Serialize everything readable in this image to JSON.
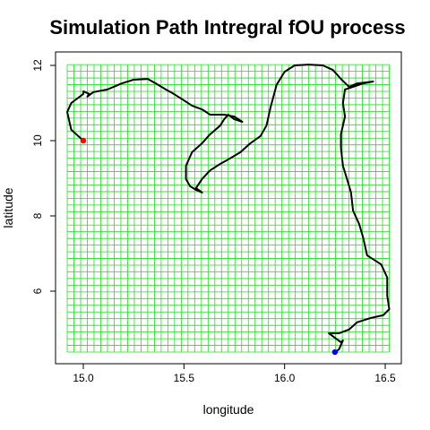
{
  "chart_data": {
    "type": "line",
    "title": "Simulation Path Intregral fOU process",
    "x_label": "longitude",
    "y_label": "latitude",
    "x": [
      15.0,
      14.94,
      14.92,
      14.94,
      15.0,
      15.0,
      15.03,
      15.02,
      15.05,
      15.12,
      15.19,
      15.25,
      15.32,
      15.36,
      15.41,
      15.45,
      15.5,
      15.54,
      15.59,
      15.63,
      15.7,
      15.75,
      15.79,
      15.75,
      15.72,
      15.7,
      15.68,
      15.63,
      15.59,
      15.54,
      15.51,
      15.51,
      15.53,
      15.56,
      15.59,
      15.56,
      15.59,
      15.63,
      15.68,
      15.72,
      15.78,
      15.83,
      15.88,
      15.91,
      15.93,
      15.96,
      16.0,
      16.05,
      16.12,
      16.19,
      16.24,
      16.28,
      16.32,
      16.36,
      16.41,
      16.44,
      16.39,
      16.34,
      16.3,
      16.29,
      16.3,
      16.28,
      16.28,
      16.29,
      16.31,
      16.33,
      16.34,
      16.37,
      16.39,
      16.41,
      16.48,
      16.51,
      16.51,
      16.52,
      16.49,
      16.43,
      16.36,
      16.32,
      16.27,
      16.22,
      16.28,
      16.29,
      16.27,
      16.25
    ],
    "y": [
      10.0,
      10.29,
      10.76,
      11.0,
      11.24,
      11.31,
      11.24,
      11.17,
      11.29,
      11.36,
      11.52,
      11.62,
      11.64,
      11.52,
      11.36,
      11.24,
      11.07,
      10.93,
      10.83,
      10.69,
      10.69,
      10.64,
      10.5,
      10.57,
      10.69,
      10.57,
      10.4,
      10.17,
      9.93,
      9.69,
      9.33,
      8.98,
      8.79,
      8.69,
      8.62,
      8.74,
      8.98,
      9.21,
      9.38,
      9.5,
      9.69,
      9.93,
      10.12,
      10.4,
      10.88,
      11.48,
      11.83,
      12.0,
      12.02,
      12.0,
      11.88,
      11.64,
      11.43,
      11.52,
      11.55,
      11.57,
      11.52,
      11.43,
      11.36,
      11.0,
      10.64,
      10.17,
      9.81,
      9.33,
      8.98,
      8.62,
      8.14,
      7.79,
      7.43,
      6.95,
      6.71,
      6.36,
      5.88,
      5.52,
      5.36,
      5.29,
      5.17,
      4.98,
      4.88,
      4.88,
      4.64,
      4.69,
      4.45,
      4.38
    ],
    "color": "#000000",
    "start_color": "#ff0000",
    "end_color": "#0000ff",
    "grid_color": "#22dd22",
    "grid": true,
    "xlim": [
      14.862,
      16.58
    ],
    "ylim": [
      4.071,
      12.357
    ],
    "xticks": [
      {
        "value": 15,
        "label": "15.0"
      },
      {
        "value": 15.5,
        "label": "15.5"
      },
      {
        "value": 16,
        "label": "16.0"
      },
      {
        "value": 16.5,
        "label": "16.5"
      }
    ],
    "yticks": [
      6,
      8,
      10,
      12
    ]
  }
}
